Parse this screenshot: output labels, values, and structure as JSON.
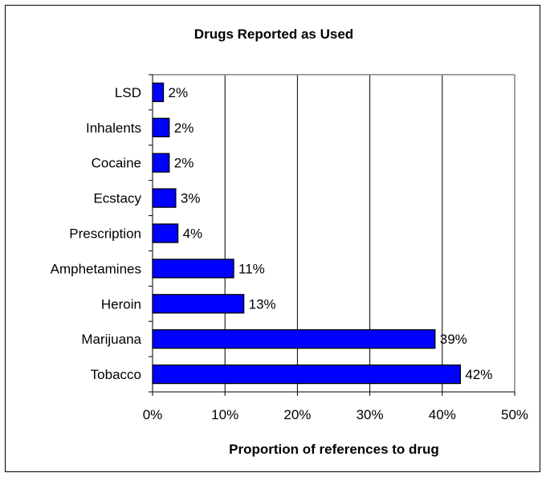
{
  "chart_data": {
    "type": "bar",
    "orientation": "horizontal",
    "title": "Drugs Reported as Used",
    "xlabel": "Proportion of references to drug",
    "ylabel": "",
    "categories": [
      "LSD",
      "Inhalents",
      "Cocaine",
      "Ecstacy",
      "Prescription",
      "Amphetamines",
      "Heroin",
      "Marijuana",
      "Tobacco"
    ],
    "values": [
      1.5,
      2.3,
      2.3,
      3.2,
      3.5,
      11.2,
      12.6,
      39.0,
      42.5
    ],
    "data_labels": [
      "2%",
      "2%",
      "2%",
      "3%",
      "4%",
      "11%",
      "13%",
      "39%",
      "42%"
    ],
    "xlim": [
      0,
      50
    ],
    "x_ticks": [
      0,
      10,
      20,
      30,
      40,
      50
    ],
    "x_tick_labels": [
      "0%",
      "10%",
      "20%",
      "30%",
      "40%",
      "50%"
    ],
    "grid": "vertical major gridlines",
    "legend": "none",
    "colors": {
      "bar_fill": "#0000FF",
      "bar_stroke": "#000000",
      "plot_background": "#FFFFFF",
      "grid": "#000000"
    }
  }
}
